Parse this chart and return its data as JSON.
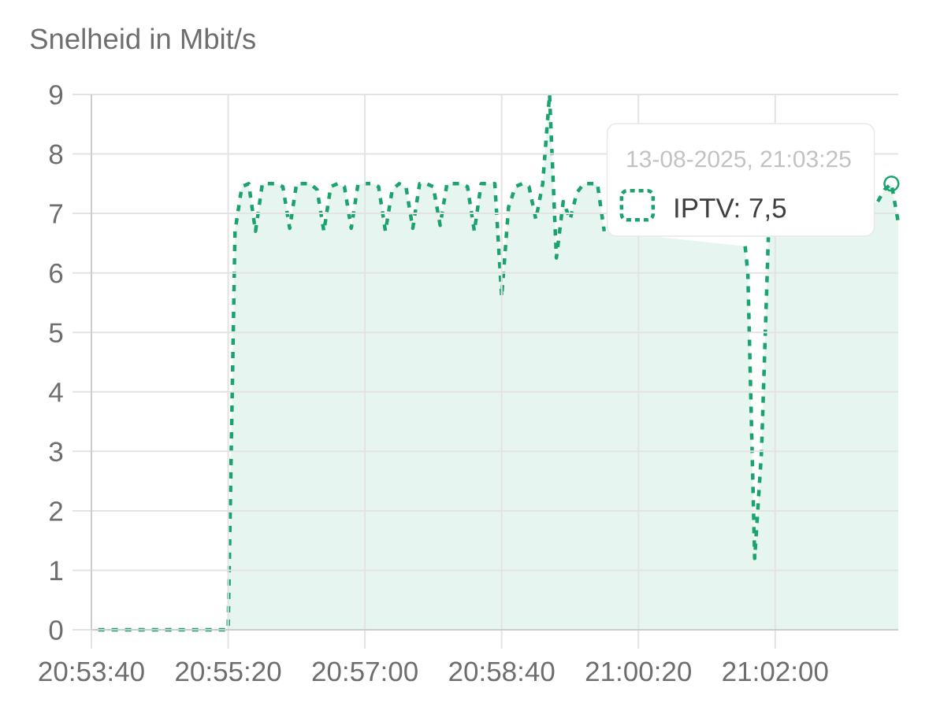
{
  "chart_data": {
    "type": "area",
    "ylabel": "Snelheid in Mbit/s",
    "annotations": [
      {
        "text": "13-08-2025, 21:03:25",
        "x": "2025-08-13T21:03:25",
        "y": 7.5
      },
      "IPTV: 7,5"
    ],
    "xlim": [
      "2025-08-13T20:53:40",
      "2025-08-13T21:03:30"
    ],
    "xticks": [
      {
        "value": "2025-08-13T20:53:40",
        "label": "20:53:40"
      },
      {
        "value": "2025-08-13T20:55:20",
        "label": "20:55:20"
      },
      {
        "value": "2025-08-13T20:57:00",
        "label": "20:57:00"
      },
      {
        "value": "2025-08-13T20:58:40",
        "label": "20:58:40"
      },
      {
        "value": "2025-08-13T21:00:20",
        "label": "21:00:20"
      },
      {
        "value": "2025-08-13T21:02:00",
        "label": "21:02:00"
      }
    ],
    "ylim": [
      0,
      9
    ],
    "yticks": [
      0,
      1,
      2,
      3,
      4,
      5,
      6,
      7,
      8,
      9
    ],
    "grid": true,
    "line_style": "dotted",
    "x": [
      "2025-08-13T20:53:45",
      "2025-08-13T20:55:20",
      "2025-08-13T20:55:25",
      "2025-08-13T20:55:30",
      "2025-08-13T20:55:35",
      "2025-08-13T20:55:40",
      "2025-08-13T20:55:45",
      "2025-08-13T20:55:50",
      "2025-08-13T20:55:55",
      "2025-08-13T20:56:00",
      "2025-08-13T20:56:05",
      "2025-08-13T20:56:10",
      "2025-08-13T20:56:15",
      "2025-08-13T20:56:20",
      "2025-08-13T20:56:25",
      "2025-08-13T20:56:30",
      "2025-08-13T20:56:35",
      "2025-08-13T20:56:40",
      "2025-08-13T20:56:45",
      "2025-08-13T20:56:50",
      "2025-08-13T20:56:55",
      "2025-08-13T20:57:00",
      "2025-08-13T20:57:05",
      "2025-08-13T20:57:10",
      "2025-08-13T20:57:15",
      "2025-08-13T20:57:20",
      "2025-08-13T20:57:25",
      "2025-08-13T20:57:30",
      "2025-08-13T20:57:35",
      "2025-08-13T20:57:40",
      "2025-08-13T20:57:45",
      "2025-08-13T20:57:50",
      "2025-08-13T20:57:55",
      "2025-08-13T20:58:00",
      "2025-08-13T20:58:05",
      "2025-08-13T20:58:10",
      "2025-08-13T20:58:15",
      "2025-08-13T20:58:20",
      "2025-08-13T20:58:25",
      "2025-08-13T20:58:30",
      "2025-08-13T20:58:35",
      "2025-08-13T20:58:40",
      "2025-08-13T20:58:45",
      "2025-08-13T20:58:50",
      "2025-08-13T20:58:55",
      "2025-08-13T20:59:00",
      "2025-08-13T20:59:05",
      "2025-08-13T20:59:10",
      "2025-08-13T20:59:15",
      "2025-08-13T20:59:20",
      "2025-08-13T20:59:25",
      "2025-08-13T20:59:30",
      "2025-08-13T20:59:35",
      "2025-08-13T20:59:40",
      "2025-08-13T20:59:45",
      "2025-08-13T20:59:50",
      "2025-08-13T20:59:55",
      "2025-08-13T21:00:00",
      "2025-08-13T21:01:38",
      "2025-08-13T21:01:40",
      "2025-08-13T21:01:45",
      "2025-08-13T21:01:50",
      "2025-08-13T21:01:55",
      "2025-08-13T21:02:00",
      "2025-08-13T21:03:15",
      "2025-08-13T21:03:20",
      "2025-08-13T21:03:25",
      "2025-08-13T21:03:30"
    ],
    "series": [
      {
        "color": "#1ba36e",
        "values": [
          0,
          0,
          6.7,
          7.45,
          7.5,
          6.7,
          7.5,
          7.5,
          7.5,
          7.45,
          6.75,
          7.5,
          7.5,
          7.5,
          7.4,
          6.7,
          7.45,
          7.5,
          7.45,
          6.75,
          7.5,
          7.5,
          7.5,
          7.45,
          6.7,
          7.4,
          7.5,
          7.45,
          6.75,
          7.5,
          7.5,
          7.45,
          6.8,
          7.5,
          7.5,
          7.5,
          7.45,
          6.7,
          7.5,
          7.5,
          7.5,
          5.6,
          7.1,
          7.45,
          7.5,
          7.45,
          6.9,
          7.5,
          9,
          6.25,
          7.2,
          6.9,
          7.35,
          7.5,
          7.5,
          7.5,
          6.7,
          null,
          6.45,
          6.0,
          1.2,
          3.0,
          6.6,
          null,
          7.2,
          7.4,
          7.5,
          6.85
        ]
      }
    ]
  }
}
